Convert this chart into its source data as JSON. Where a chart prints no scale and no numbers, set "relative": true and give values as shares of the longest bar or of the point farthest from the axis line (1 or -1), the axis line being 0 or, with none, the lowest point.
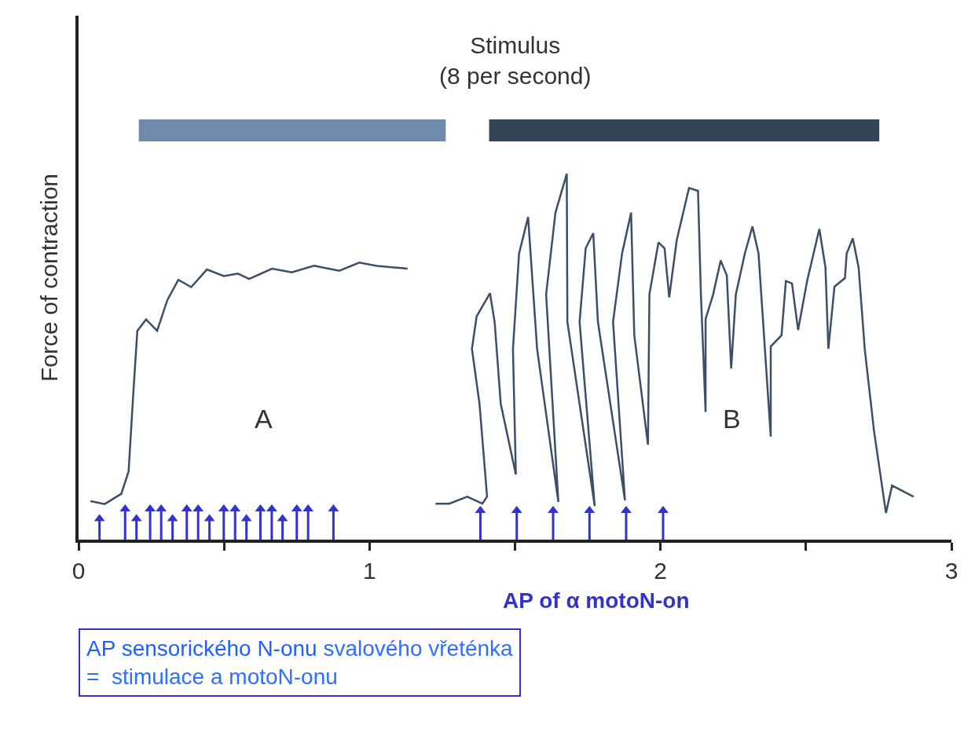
{
  "chart_data": {
    "type": "line",
    "relative": true,
    "ylabel": "Force of contraction",
    "xlim": [
      0,
      3
    ],
    "xticks": [
      0,
      {
        "value": 0.5,
        "label": null
      },
      1,
      {
        "value": 1.5,
        "label": null
      },
      2,
      {
        "value": 2.5,
        "label": null
      },
      3
    ],
    "marker": "none",
    "line_style": "solid",
    "series": [
      {
        "color": "#3c4e68",
        "x": [
          0.041,
          0.09,
          0.147,
          0.172,
          0.188,
          0.202,
          0.232,
          0.27,
          0.305,
          0.343,
          0.387,
          0.441,
          0.499,
          0.548,
          0.586,
          0.665,
          0.733,
          0.809,
          0.896,
          0.965,
          1.025,
          1.131
        ],
        "values": [
          0.094,
          0.087,
          0.112,
          0.167,
          0.356,
          0.51,
          0.538,
          0.51,
          0.585,
          0.635,
          0.617,
          0.66,
          0.644,
          0.65,
          0.637,
          0.662,
          0.653,
          0.669,
          0.657,
          0.677,
          0.669,
          0.662
        ]
      },
      {
        "color": "#3c4e68",
        "x": [
          1.227,
          1.274,
          1.336,
          1.388,
          1.404,
          1.378,
          1.352,
          1.368,
          1.414,
          1.43,
          1.451,
          1.503,
          1.493,
          1.514,
          1.545,
          1.576,
          1.649,
          1.607,
          1.639,
          1.678,
          1.68,
          1.774,
          1.722,
          1.743,
          1.769,
          1.785,
          1.878,
          1.837,
          1.868,
          1.899,
          1.91,
          1.957,
          1.962,
          1.993,
          2.014,
          2.03,
          2.056,
          2.098,
          2.129,
          2.139,
          2.155,
          2.155,
          2.181,
          2.207,
          2.228,
          2.243,
          2.259,
          2.29,
          2.316,
          2.337,
          2.379,
          2.379,
          2.416,
          2.431,
          2.452,
          2.473,
          2.504,
          2.546,
          2.567,
          2.577,
          2.598,
          2.634,
          2.64,
          2.661,
          2.681,
          2.702,
          2.734,
          2.775,
          2.796,
          2.87
        ],
        "values": [
          0.088,
          0.088,
          0.105,
          0.088,
          0.105,
          0.332,
          0.466,
          0.545,
          0.602,
          0.532,
          0.332,
          0.159,
          0.466,
          0.699,
          0.788,
          0.466,
          0.092,
          0.599,
          0.799,
          0.894,
          0.532,
          0.082,
          0.532,
          0.712,
          0.749,
          0.532,
          0.096,
          0.532,
          0.699,
          0.799,
          0.499,
          0.232,
          0.599,
          0.726,
          0.712,
          0.592,
          0.732,
          0.859,
          0.852,
          0.599,
          0.312,
          0.539,
          0.599,
          0.682,
          0.645,
          0.418,
          0.599,
          0.699,
          0.765,
          0.699,
          0.252,
          0.472,
          0.499,
          0.632,
          0.626,
          0.512,
          0.632,
          0.759,
          0.665,
          0.466,
          0.618,
          0.639,
          0.699,
          0.736,
          0.665,
          0.466,
          0.265,
          0.065,
          0.132,
          0.105
        ]
      },
      {
        "color": "#6f8aad",
        "x": [
          0.207,
          1.262
        ],
        "values": [
          1,
          1
        ]
      },
      {
        "color": "#354459",
        "x": [
          1.411,
          2.752
        ],
        "values": [
          1,
          1
        ]
      },
      {
        "type": "lollipop",
        "marker": "triangle",
        "color": "#3333cc",
        "x": [
          0.072,
          0.16,
          0.199,
          0.246,
          0.284,
          0.323,
          0.372,
          0.411,
          0.45,
          0.499,
          0.538,
          0.577,
          0.625,
          0.664,
          0.701,
          0.75,
          0.789,
          0.876
        ],
        "values": [
          0.051,
          0.075,
          0.051,
          0.075,
          0.075,
          0.051,
          0.075,
          0.075,
          0.051,
          0.075,
          0.075,
          0.051,
          0.075,
          0.075,
          0.051,
          0.075,
          0.075,
          0.075
        ]
      },
      {
        "type": "lollipop",
        "marker": "triangle",
        "color": "#3333cc",
        "x": [
          1.381,
          1.506,
          1.631,
          1.756,
          1.882,
          2.009
        ],
        "values": [
          0.071,
          0.071,
          0.071,
          0.071,
          0.071,
          0.071
        ]
      }
    ],
    "annotations": [
      "Stimulus\n(8 per second)",
      "A",
      "B",
      "AP of α motoN-on",
      "AP sensorického N-onu",
      " svalového vřeténka",
      "=  stimulace a motoN-onu"
    ]
  }
}
